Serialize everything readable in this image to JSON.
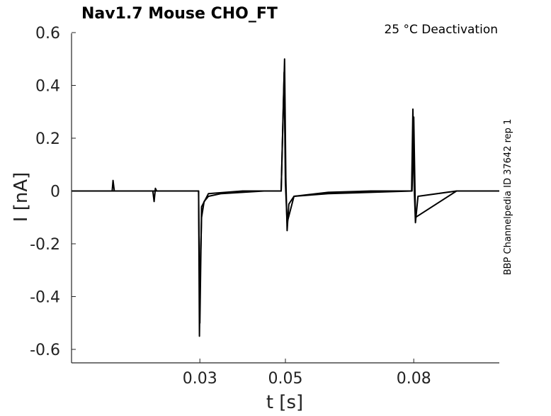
{
  "chart_data": {
    "type": "line",
    "title": "Nav1.7  Mouse  CHO_FT",
    "annotation": "25 °C  Deactivation",
    "side_label": "BBP Channelpedia ID 37642 rep 1",
    "xlabel": "t [s]",
    "ylabel": "I [nA]",
    "xlim": [
      0.0,
      0.1
    ],
    "ylim": [
      -0.65,
      0.6
    ],
    "xticks": [
      0.03,
      0.05,
      0.08
    ],
    "xtick_labels": [
      "0.03",
      "0.05",
      "0.08"
    ],
    "yticks": [
      0.6,
      0.4,
      0.2,
      0,
      -0.2,
      -0.4,
      -0.6
    ],
    "ytick_labels": [
      "0.6",
      "0.4",
      "0.2",
      "0",
      "-0.2",
      "-0.4",
      "-0.6"
    ],
    "grid": false,
    "line_color": "#000000",
    "series": [
      {
        "x": [
          0.0,
          0.0095,
          0.0097,
          0.01,
          0.019,
          0.0193,
          0.0196,
          0.0199,
          0.0297,
          0.0299,
          0.0301,
          0.0304,
          0.031,
          0.032,
          0.035,
          0.045,
          0.049,
          0.0498,
          0.0501,
          0.0504,
          0.0508,
          0.052,
          0.06,
          0.07,
          0.0795,
          0.0798,
          0.0801,
          0.0804,
          0.081,
          0.09,
          0.1
        ],
        "y": [
          0.0,
          0.0,
          0.04,
          0.0,
          0.0,
          -0.04,
          0.01,
          0.0,
          0.0,
          -0.55,
          -0.3,
          -0.1,
          -0.04,
          -0.02,
          -0.01,
          0.0,
          0.0,
          0.5,
          0.05,
          -0.15,
          -0.05,
          -0.02,
          -0.01,
          -0.005,
          0.0,
          0.31,
          0.02,
          -0.12,
          -0.02,
          0.0,
          0.0
        ]
      },
      {
        "x": [
          0.0,
          0.01,
          0.02,
          0.0297,
          0.03,
          0.0304,
          0.032,
          0.04,
          0.049,
          0.0497,
          0.05,
          0.0504,
          0.052,
          0.06,
          0.07,
          0.0796,
          0.08,
          0.0804,
          0.09,
          0.1
        ],
        "y": [
          0.0,
          0.0,
          0.0,
          0.0,
          -0.5,
          -0.06,
          -0.01,
          0.0,
          0.0,
          0.45,
          0.03,
          -0.12,
          -0.02,
          -0.005,
          0.0,
          0.0,
          0.28,
          -0.1,
          0.0,
          0.0
        ]
      }
    ]
  }
}
